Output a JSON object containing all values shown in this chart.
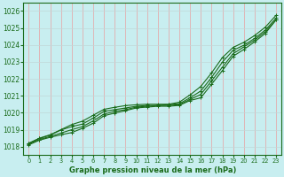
{
  "title": "Graphe pression niveau de la mer (hPa)",
  "bg_color": "#c8eef0",
  "grid_color_x": "#e8a0a0",
  "grid_color_y": "#c0d8d8",
  "line_color": "#1a6b1a",
  "xlim": [
    -0.5,
    23.5
  ],
  "ylim": [
    1017.5,
    1026.5
  ],
  "yticks": [
    1018,
    1019,
    1020,
    1021,
    1022,
    1023,
    1024,
    1025,
    1026
  ],
  "xticks": [
    0,
    1,
    2,
    3,
    4,
    5,
    6,
    7,
    8,
    9,
    10,
    11,
    12,
    13,
    14,
    15,
    16,
    17,
    18,
    19,
    20,
    21,
    22,
    23
  ],
  "series": [
    [
      1018.2,
      1018.5,
      1018.7,
      1019.0,
      1019.3,
      1019.5,
      1019.85,
      1020.2,
      1020.32,
      1020.42,
      1020.47,
      1020.5,
      1020.5,
      1020.5,
      1020.62,
      1021.05,
      1021.55,
      1022.35,
      1023.25,
      1023.85,
      1024.15,
      1024.55,
      1025.05,
      1025.75
    ],
    [
      1018.18,
      1018.48,
      1018.68,
      1018.98,
      1019.18,
      1019.33,
      1019.68,
      1020.08,
      1020.18,
      1020.28,
      1020.38,
      1020.43,
      1020.43,
      1020.48,
      1020.53,
      1020.88,
      1021.28,
      1022.08,
      1022.98,
      1023.68,
      1023.98,
      1024.38,
      1024.88,
      1025.58
    ],
    [
      1018.15,
      1018.42,
      1018.6,
      1018.8,
      1019.0,
      1019.18,
      1019.52,
      1019.92,
      1020.08,
      1020.18,
      1020.33,
      1020.38,
      1020.43,
      1020.43,
      1020.48,
      1020.78,
      1021.08,
      1021.88,
      1022.68,
      1023.48,
      1023.88,
      1024.28,
      1024.78,
      1025.48
    ],
    [
      1018.1,
      1018.38,
      1018.55,
      1018.7,
      1018.83,
      1019.08,
      1019.38,
      1019.82,
      1019.98,
      1020.12,
      1020.28,
      1020.33,
      1020.38,
      1020.38,
      1020.43,
      1020.72,
      1020.88,
      1021.68,
      1022.48,
      1023.33,
      1023.73,
      1024.18,
      1024.68,
      1025.48
    ]
  ]
}
